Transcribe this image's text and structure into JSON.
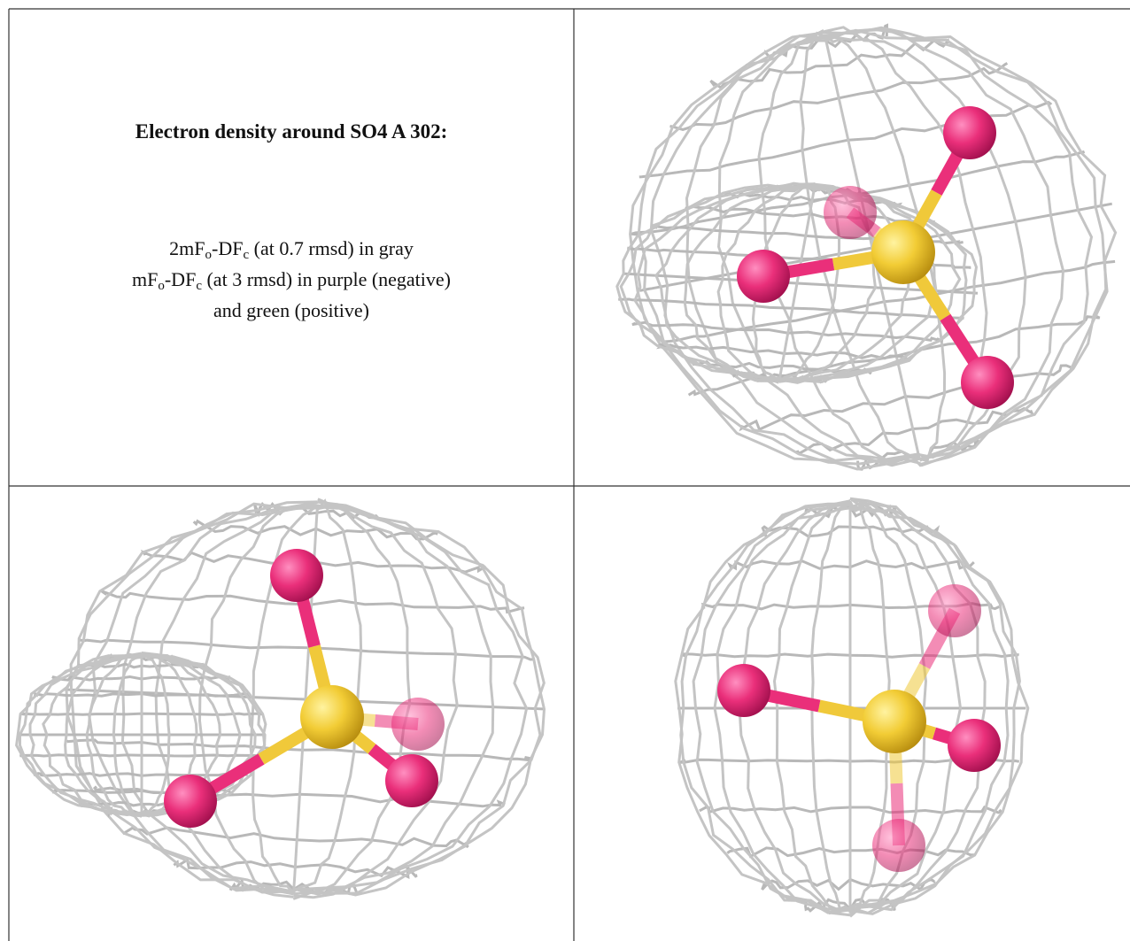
{
  "text_cell": {
    "title": "Electron density around SO4 A 302:",
    "lines": [
      [
        "2mF",
        "o",
        "-DF",
        "c",
        " (at 0.7 rmsd) in gray"
      ],
      [
        "mF",
        "o",
        "-DF",
        "c",
        " (at 3 rmsd) in purple (negative)"
      ],
      [
        "and green (positive)"
      ]
    ]
  }
}
